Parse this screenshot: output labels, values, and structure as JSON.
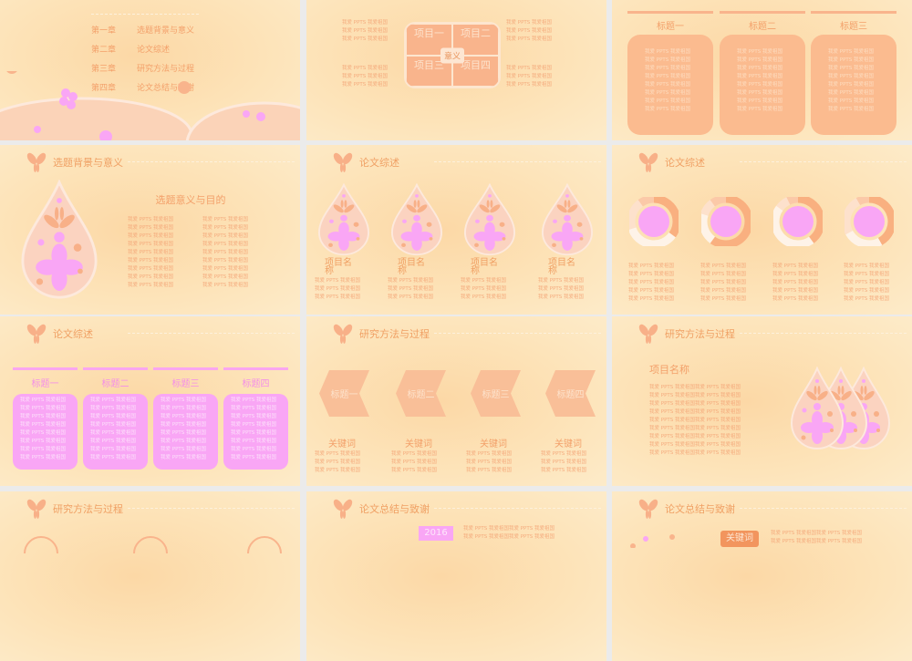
{
  "filler": "我爱 PPTS 我爱祖国",
  "filler_long": "我爱 PPTS 我爱祖国我爱 PPTS 我爱祖国",
  "colors": {
    "accent": "#f0a064",
    "pink": "#f9a6f5",
    "peach": "#fbbb8f",
    "background": "#fde3b8"
  },
  "slides": [
    {
      "chapters": [
        {
          "num": "第一章",
          "title": "选题背景与意义"
        },
        {
          "num": "第二章",
          "title": "论文综述"
        },
        {
          "num": "第三章",
          "title": "研究方法与过程"
        },
        {
          "num": "第四章",
          "title": "论文总结与致谢"
        }
      ]
    },
    {
      "quad": [
        "项目一",
        "项目二",
        "项目三",
        "项目四"
      ],
      "center": "意义"
    },
    {
      "columns": [
        "标题一",
        "标题二",
        "标题三"
      ]
    },
    {
      "header": "选题背景与意义",
      "subtitle": "选题意义与目的"
    },
    {
      "header": "论文综述",
      "item_label": "项目名称"
    },
    {
      "header": "论文综述",
      "donuts": [
        [
          0.35,
          0.35,
          0.2,
          0.1
        ],
        [
          0.6,
          0.2,
          0.1,
          0.1
        ],
        [
          0.4,
          0.45,
          0.08,
          0.07
        ],
        [
          0.42,
          0.25,
          0.25,
          0.08
        ]
      ]
    },
    {
      "header": "论文综述",
      "columns": [
        "标题一",
        "标题二",
        "标题三",
        "标题四"
      ]
    },
    {
      "header": "研究方法与过程",
      "steps": [
        "标题一",
        "标题二",
        "标题三",
        "标题四"
      ],
      "keyword": "关键词"
    },
    {
      "header": "研究方法与过程",
      "project": "项目名称"
    },
    {
      "header": "研究方法与过程"
    },
    {
      "header": "论文总结与致谢",
      "year": "2016"
    },
    {
      "header": "论文总结与致谢",
      "keyword": "关键词"
    }
  ]
}
